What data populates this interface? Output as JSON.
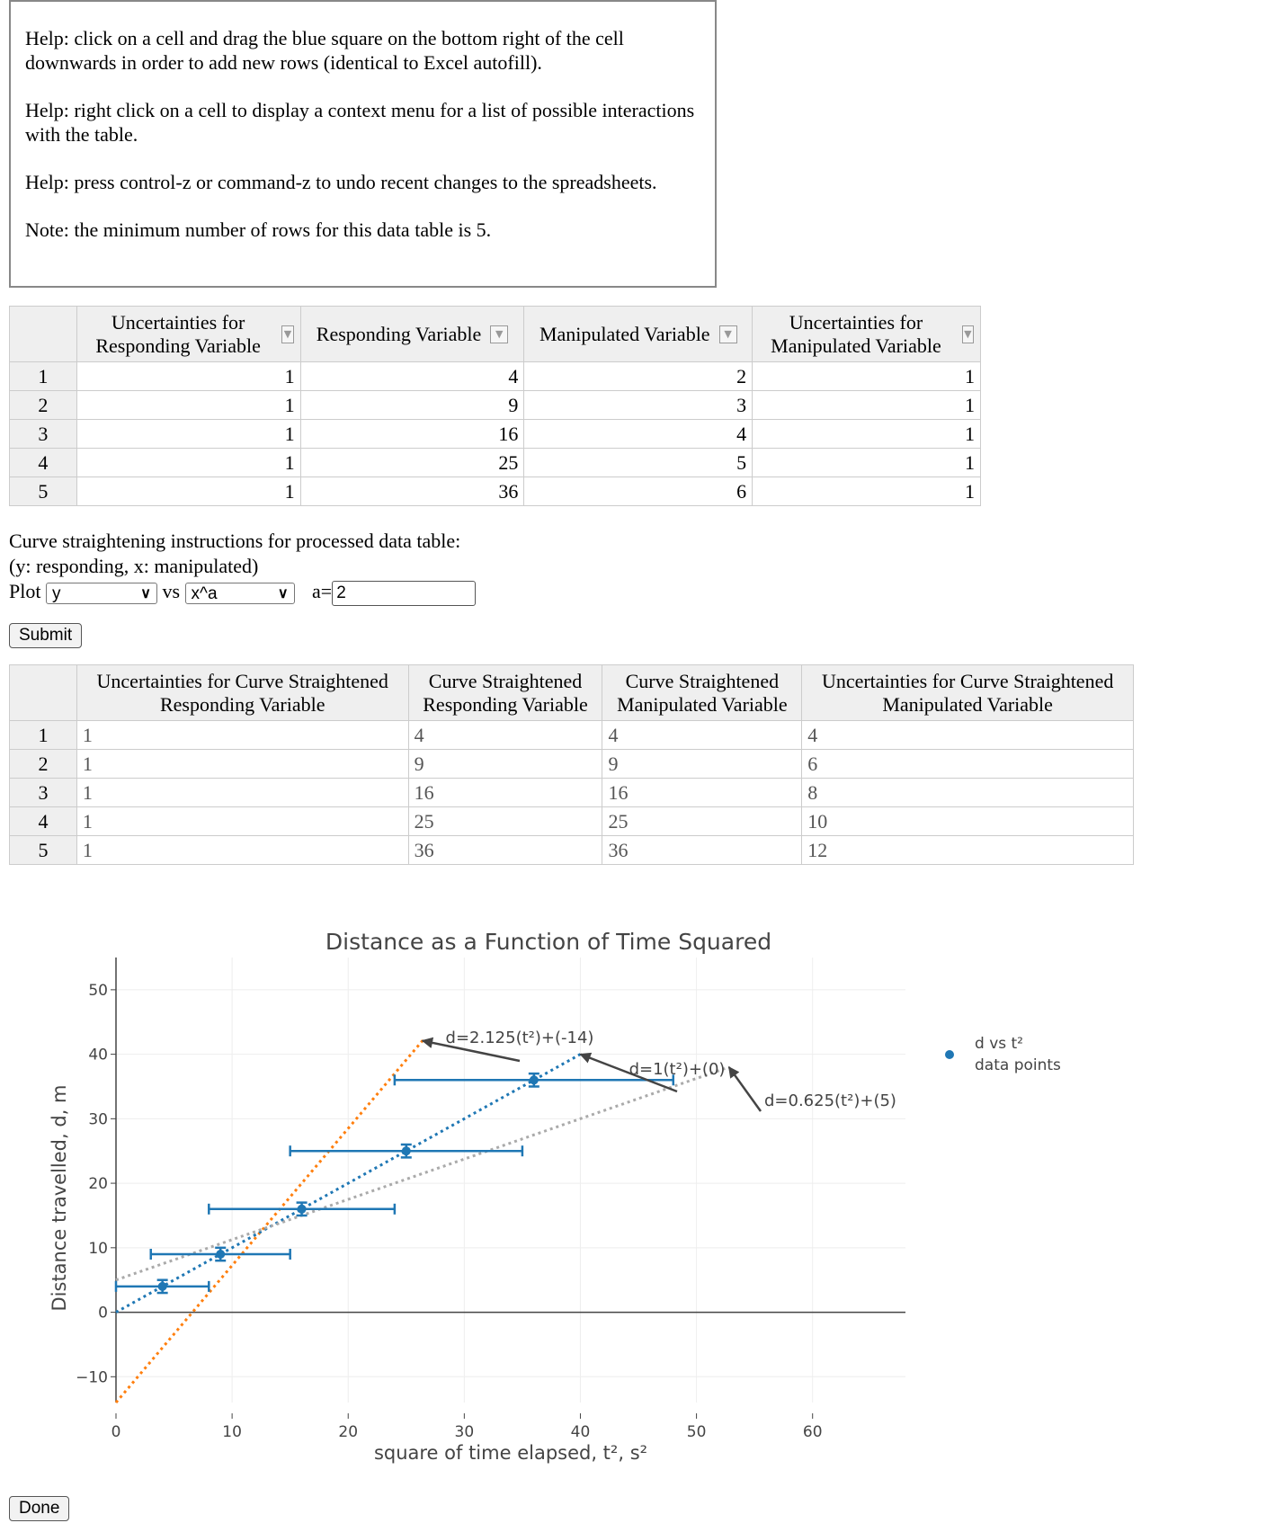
{
  "help": {
    "lines": [
      "Help: click on a cell and drag the blue square on the bottom right of the cell downwards in order to add new rows (identical to Excel autofill).",
      "Help: right click on a cell to display a context menu for a list of possible interactions with the table.",
      "Help: press control-z or command-z to undo recent changes to the spreadsheets.",
      "Note: the minimum number of rows for this data table is 5."
    ]
  },
  "input_table": {
    "headers": [
      "Uncertainties for Responding Variable",
      "Responding Variable",
      "Manipulated Variable",
      "Uncertainties for Manipulated Variable"
    ],
    "dropdown_glyph": "▼",
    "rows": [
      {
        "n": "1",
        "cells": [
          "1",
          "4",
          "2",
          "1"
        ]
      },
      {
        "n": "2",
        "cells": [
          "1",
          "9",
          "3",
          "1"
        ]
      },
      {
        "n": "3",
        "cells": [
          "1",
          "16",
          "4",
          "1"
        ]
      },
      {
        "n": "4",
        "cells": [
          "1",
          "25",
          "5",
          "1"
        ]
      },
      {
        "n": "5",
        "cells": [
          "1",
          "36",
          "6",
          "1"
        ]
      }
    ]
  },
  "straightening": {
    "line1": "Curve straightening instructions for processed data table:",
    "line2": "(y: responding, x: manipulated)",
    "plot_label": "Plot",
    "y_select": "y",
    "vs_label": "vs",
    "x_select": "x^a",
    "a_label": "a=",
    "a_value": "2",
    "submit_label": "Submit"
  },
  "output_table": {
    "headers": [
      "Uncertainties for Curve Straightened Responding Variable",
      "Curve Straightened Responding Variable",
      "Curve Straightened Manipulated Variable",
      "Uncertainties for Curve Straightened Manipulated Variable"
    ],
    "rows": [
      {
        "n": "1",
        "cells": [
          "1",
          "4",
          "4",
          "4"
        ]
      },
      {
        "n": "2",
        "cells": [
          "1",
          "9",
          "9",
          "6"
        ]
      },
      {
        "n": "3",
        "cells": [
          "1",
          "16",
          "16",
          "8"
        ]
      },
      {
        "n": "4",
        "cells": [
          "1",
          "25",
          "25",
          "10"
        ]
      },
      {
        "n": "5",
        "cells": [
          "1",
          "36",
          "36",
          "12"
        ]
      }
    ]
  },
  "chart_data": {
    "type": "scatter",
    "title": "Distance as a Function of Time Squared",
    "xlabel": "square of time elapsed, t², s²",
    "ylabel": "Distance travelled, d, m",
    "xlim": [
      0,
      68
    ],
    "ylim": [
      -14,
      55
    ],
    "x_ticks": [
      0,
      10,
      20,
      30,
      40,
      50,
      60
    ],
    "y_ticks": [
      -10,
      0,
      10,
      20,
      30,
      40,
      50
    ],
    "grid": true,
    "legend_position": "top-right",
    "series": [
      {
        "name": "d vs t² data points",
        "legend_lines": [
          "d vs t²",
          "data points"
        ],
        "color": "#1f77b4",
        "x": [
          4,
          9,
          16,
          25,
          36
        ],
        "y": [
          4,
          9,
          16,
          25,
          36
        ],
        "x_err": [
          4,
          6,
          8,
          10,
          12
        ],
        "y_err": [
          1,
          1,
          1,
          1,
          1
        ]
      }
    ],
    "fit_lines": [
      {
        "slope": 2.125,
        "intercept": -14,
        "color": "#ff7f0e",
        "label": "d=2.125(t²)+(-14)",
        "x_range": [
          0,
          26.6
        ]
      },
      {
        "slope": 1,
        "intercept": 0,
        "color": "#1f77b4",
        "label": "d=1(t²)+(0)",
        "x_range": [
          0,
          40
        ]
      },
      {
        "slope": 0.625,
        "intercept": 5,
        "color": "#aaaaaa",
        "label": "d=0.625(t²)+(5)",
        "x_range": [
          0,
          52.8
        ]
      }
    ],
    "annotation_color": "#444444"
  },
  "done_label": "Done"
}
